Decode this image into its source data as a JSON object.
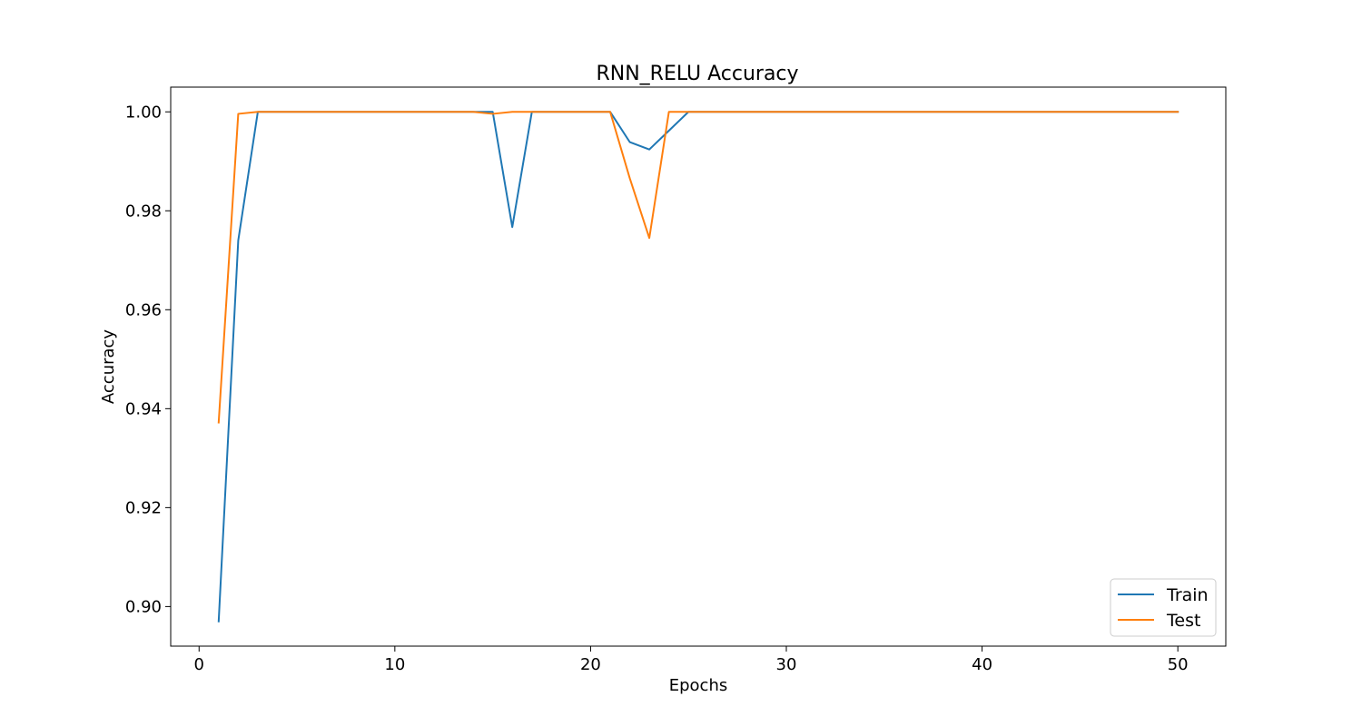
{
  "chart_data": {
    "type": "line",
    "title": "RNN_RELU Accuracy",
    "xlabel": "Epochs",
    "ylabel": "Accuracy",
    "xlim": [
      -1.45,
      52.45
    ],
    "ylim": [
      0.892,
      1.005
    ],
    "xticks": [
      0,
      10,
      20,
      30,
      40,
      50
    ],
    "xtick_labels": [
      "0",
      "10",
      "20",
      "30",
      "40",
      "50"
    ],
    "yticks": [
      0.9,
      0.92,
      0.94,
      0.96,
      0.98,
      1.0
    ],
    "ytick_labels": [
      "0.90",
      "0.92",
      "0.94",
      "0.96",
      "0.98",
      "1.00"
    ],
    "grid": false,
    "legend_position": "bottom-right",
    "x": [
      1,
      2,
      3,
      4,
      5,
      6,
      7,
      8,
      9,
      10,
      11,
      12,
      13,
      14,
      15,
      16,
      17,
      18,
      19,
      20,
      21,
      22,
      23,
      24,
      25,
      26,
      27,
      28,
      29,
      30,
      31,
      32,
      33,
      34,
      35,
      36,
      37,
      38,
      39,
      40,
      41,
      42,
      43,
      44,
      45,
      46,
      47,
      48,
      49,
      50
    ],
    "series": [
      {
        "name": "Train",
        "color": "#1f77b4",
        "values": [
          0.897,
          0.974,
          1.0,
          1.0,
          1.0,
          1.0,
          1.0,
          1.0,
          1.0,
          1.0,
          1.0,
          1.0,
          1.0,
          1.0,
          1.0,
          0.9767,
          1.0,
          1.0,
          1.0,
          1.0,
          1.0,
          0.9939,
          0.9924,
          0.9962,
          1.0,
          1.0,
          1.0,
          1.0,
          1.0,
          1.0,
          1.0,
          1.0,
          1.0,
          1.0,
          1.0,
          1.0,
          1.0,
          1.0,
          1.0,
          1.0,
          1.0,
          1.0,
          1.0,
          1.0,
          1.0,
          1.0,
          1.0,
          1.0,
          1.0,
          1.0
        ]
      },
      {
        "name": "Test",
        "color": "#ff7f0e",
        "values": [
          0.9372,
          0.9996,
          1.0,
          1.0,
          1.0,
          1.0,
          1.0,
          1.0,
          1.0,
          1.0,
          1.0,
          1.0,
          1.0,
          1.0,
          0.9996,
          1.0,
          1.0,
          1.0,
          1.0,
          1.0,
          1.0,
          0.9866,
          0.9745,
          1.0,
          1.0,
          1.0,
          1.0,
          1.0,
          1.0,
          1.0,
          1.0,
          1.0,
          1.0,
          1.0,
          1.0,
          1.0,
          1.0,
          1.0,
          1.0,
          1.0,
          1.0,
          1.0,
          1.0,
          1.0,
          1.0,
          1.0,
          1.0,
          1.0,
          1.0,
          1.0
        ]
      }
    ]
  }
}
